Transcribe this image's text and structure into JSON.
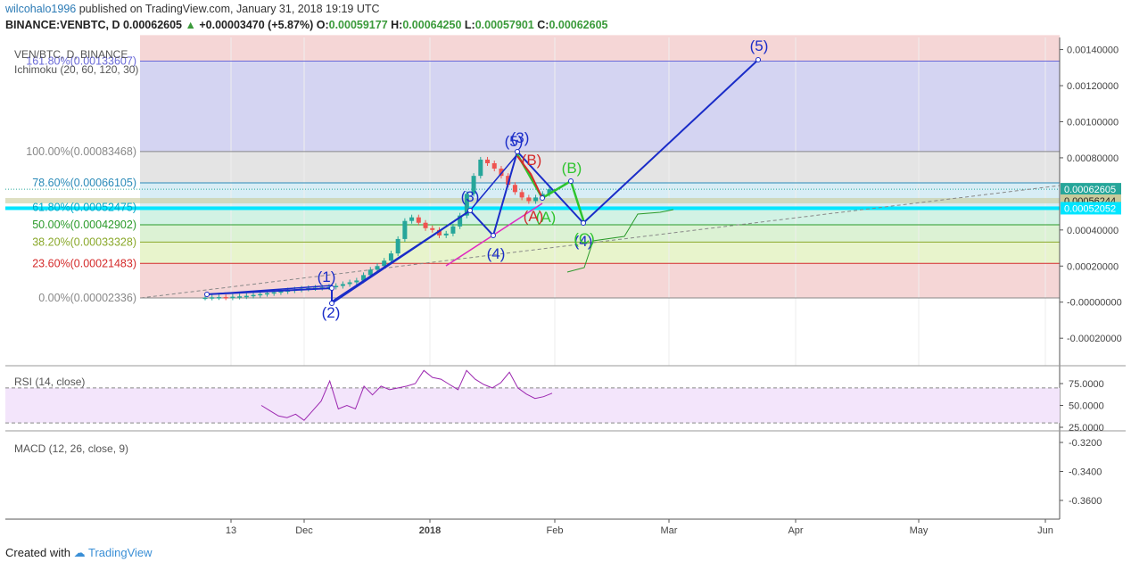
{
  "header": {
    "user": "wilcohalo1996",
    "published_text": "published on TradingView.com, January 31, 2018 19:19 UTC",
    "symbol": "BINANCE:VENBTC, D",
    "last": "0.00062605",
    "change_arrow": "▲",
    "change": "+0.00003470 (+5.87%)",
    "open_label": "O:",
    "open": "0.00059177",
    "high_label": "H:",
    "high": "0.00064250",
    "low_label": "L:",
    "low": "0.00057901",
    "close_label": "C:",
    "close": "0.00062605"
  },
  "legend": {
    "symbol": "VEN/BTC, D, BINANCE",
    "ichimoku": "Ichimoku (20, 60, 120, 30)",
    "rsi": "RSI (14, close)",
    "macd": "MACD (12, 26, close, 9)"
  },
  "footer": {
    "created_with": "Created with",
    "brand": "TradingView"
  },
  "colors": {
    "wave_blue": "#1a2cc8",
    "wave_green": "#2ec42e",
    "wave_red": "#d42a2a",
    "magenta": "#e02ac0",
    "up_candle": "#26a69a",
    "down_candle": "#ef5350",
    "rsi": "#9c27b0",
    "cyan": "#00e5ff"
  },
  "chart_data": {
    "type": "line",
    "title": "VEN/BTC, D, BINANCE",
    "x_ticks": [
      "13",
      "Dec",
      "2018",
      "Feb",
      "Mar",
      "Apr",
      "May",
      "Jun"
    ],
    "y_ticks": [
      "0.00140000",
      "0.00120000",
      "0.00100000",
      "0.00080000",
      "0.00040000",
      "0.00020000",
      "-0.00000000",
      "-0.00020000"
    ],
    "ylim": [
      -0.00029,
      0.00148
    ],
    "price_labels": [
      {
        "text": "0.00062605",
        "value": 0.00062605,
        "color": "#26a69a"
      },
      {
        "text": "0.00056244",
        "value": 0.00056244,
        "color": "#c8ca9a"
      },
      {
        "text": "0.00052052",
        "value": 0.00052052,
        "color": "#00e5ff"
      }
    ],
    "fib_levels": [
      {
        "label": "161.80%(0.00133607)",
        "value": 0.00133607,
        "color": "#6a6ad8"
      },
      {
        "label": "100.00%(0.00083468)",
        "value": 0.00083468,
        "color": "#888888"
      },
      {
        "label": "78.60%(0.00066105)",
        "value": 0.00066105,
        "color": "#2a8ab8"
      },
      {
        "label": "61.80%(0.00052475)",
        "value": 0.00052475,
        "color": "#00a8c8"
      },
      {
        "label": "50.00%(0.00042902)",
        "value": 0.00042902,
        "color": "#2a9a2a"
      },
      {
        "label": "38.20%(0.00033328)",
        "value": 0.00033328,
        "color": "#8aa82a"
      },
      {
        "label": "23.60%(0.00021483)",
        "value": 0.00021483,
        "color": "#d42a2a"
      },
      {
        "label": "0.00%(0.00002336)",
        "value": 2.336e-05,
        "color": "#888888"
      }
    ],
    "candles_close": [
      2.5e-05,
      2.7e-05,
      2.8e-05,
      2.6e-05,
      3e-05,
      3.2e-05,
      3.5e-05,
      4e-05,
      4.5e-05,
      5e-05,
      5.5e-05,
      6e-05,
      6.5e-05,
      7e-05,
      7.5e-05,
      7.8e-05,
      8e-05,
      8.2e-05,
      8.5e-05,
      9e-05,
      0.0001,
      0.00011,
      0.00012,
      0.00015,
      0.00018,
      0.0002,
      0.00023,
      0.00027,
      0.00035,
      0.00045,
      0.00047,
      0.00044,
      0.00041,
      0.0004,
      0.00037,
      0.00038,
      0.00042,
      0.00048,
      0.0006,
      0.0007,
      0.00079,
      0.00077,
      0.00074,
      0.0007,
      0.00065,
      0.00061,
      0.00058,
      0.00056,
      0.00058,
      0.0006,
      0.00062605
    ],
    "blue_waves": [
      {
        "label": "(1)",
        "value": 8.5e-05
      },
      {
        "label": "(2)",
        "value": 1.5e-05
      },
      {
        "label": "(3)",
        "value": 0.00049
      },
      {
        "label": "(4)",
        "value": 0.00036
      },
      {
        "label": "(5)",
        "value": 0.00083
      },
      {
        "label": "(3)",
        "value": 0.00083
      },
      {
        "label": "(4)",
        "value": 0.00045
      },
      {
        "label": "(5)",
        "value": 0.00133
      }
    ],
    "green_waves": [
      {
        "label": "(A)",
        "value": 0.00058
      },
      {
        "label": "(B)",
        "value": 0.000675
      },
      {
        "label": "(C)",
        "value": 0.00045
      }
    ],
    "red_waves": [
      {
        "label": "(B)",
        "value": 0.00072
      },
      {
        "label": "(A)",
        "value": 0.00058
      }
    ],
    "rsi": {
      "name": "RSI (14, close)",
      "y_ticks": [
        "75.0000",
        "50.0000",
        "25.0000"
      ],
      "ylim": [
        22,
        90
      ],
      "values": [
        50,
        44,
        38,
        36,
        40,
        33,
        44,
        55,
        78,
        46,
        50,
        46,
        72,
        62,
        72,
        68,
        70,
        72,
        75,
        90,
        82,
        80,
        74,
        68,
        90,
        80,
        74,
        70,
        76,
        88,
        70,
        63,
        58,
        60,
        64
      ]
    },
    "macd": {
      "name": "MACD (12, 26, close, 9)",
      "y_ticks": [
        "-0.3200",
        "-0.3400",
        "-0.3600"
      ],
      "ylim": [
        -0.372,
        -0.313
      ]
    }
  }
}
